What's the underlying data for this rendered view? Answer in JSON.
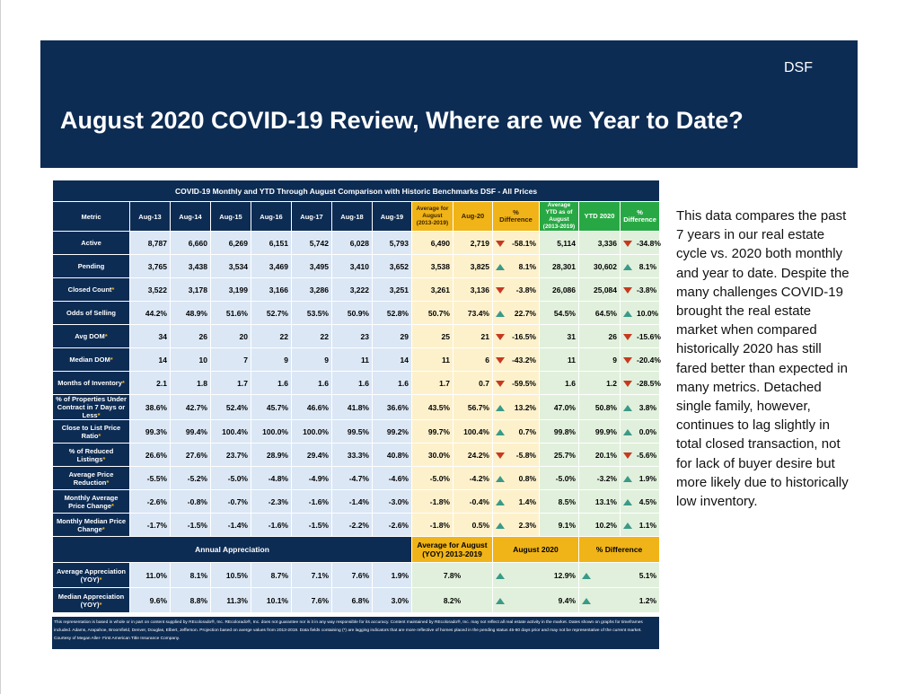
{
  "header": {
    "brand": "DSF",
    "title": "August 2020 COVID-19 Review, Where are we Year to Date?"
  },
  "table": {
    "caption": "COVID-19 Monthly and YTD  Through August Comparison with  Historic Benchmarks  DSF - All Prices",
    "columns": {
      "metric": "Metric",
      "aug13": "Aug-13",
      "aug14": "Aug-14",
      "aug15": "Aug-15",
      "aug16": "Aug-16",
      "aug17": "Aug-17",
      "aug18": "Aug-18",
      "aug19": "Aug-19",
      "avg_aug": "Average for August (2013-2019)",
      "aug20": "Aug-20",
      "pct_diff": "% Difference",
      "avg_ytd": "Average YTD as of August (2013-2019)",
      "ytd2020": "YTD 2020",
      "pct_diff_ytd": "% Difference"
    },
    "rows": [
      {
        "metric": "Active",
        "star": "",
        "h": [
          "8,787",
          "6,660",
          "6,269",
          "6,151",
          "5,742",
          "6,028",
          "5,793"
        ],
        "avg": "6,490",
        "aug20": "2,719",
        "diff": "-58.1%",
        "dir": "down",
        "avg_ytd": "5,114",
        "ytd": "3,336",
        "diff_ytd": "-34.8%",
        "dir_ytd": "down"
      },
      {
        "metric": "Pending",
        "star": "",
        "h": [
          "3,765",
          "3,438",
          "3,534",
          "3,469",
          "3,495",
          "3,410",
          "3,652"
        ],
        "avg": "3,538",
        "aug20": "3,825",
        "diff": "8.1%",
        "dir": "up",
        "avg_ytd": "28,301",
        "ytd": "30,602",
        "diff_ytd": "8.1%",
        "dir_ytd": "up"
      },
      {
        "metric": "Closed Count",
        "star": "*",
        "h": [
          "3,522",
          "3,178",
          "3,199",
          "3,166",
          "3,286",
          "3,222",
          "3,251"
        ],
        "avg": "3,261",
        "aug20": "3,136",
        "diff": "-3.8%",
        "dir": "down",
        "avg_ytd": "26,086",
        "ytd": "25,084",
        "diff_ytd": "-3.8%",
        "dir_ytd": "down"
      },
      {
        "metric": "Odds of Selling",
        "star": "",
        "h": [
          "44.2%",
          "48.9%",
          "51.6%",
          "52.7%",
          "53.5%",
          "50.9%",
          "52.8%"
        ],
        "avg": "50.7%",
        "aug20": "73.4%",
        "diff": "22.7%",
        "dir": "up",
        "avg_ytd": "54.5%",
        "ytd": "64.5%",
        "diff_ytd": "10.0%",
        "dir_ytd": "up"
      },
      {
        "metric": "Avg DOM",
        "star": "*",
        "h": [
          "34",
          "26",
          "20",
          "22",
          "22",
          "23",
          "29"
        ],
        "avg": "25",
        "aug20": "21",
        "diff": "-16.5%",
        "dir": "down",
        "avg_ytd": "31",
        "ytd": "26",
        "diff_ytd": "-15.6%",
        "dir_ytd": "down"
      },
      {
        "metric": "Median DOM",
        "star": "*",
        "h": [
          "14",
          "10",
          "7",
          "9",
          "9",
          "11",
          "14"
        ],
        "avg": "11",
        "aug20": "6",
        "diff": "-43.2%",
        "dir": "down",
        "avg_ytd": "11",
        "ytd": "9",
        "diff_ytd": "-20.4%",
        "dir_ytd": "down"
      },
      {
        "metric": "Months of Inventory",
        "star": "*",
        "h": [
          "2.1",
          "1.8",
          "1.7",
          "1.6",
          "1.6",
          "1.6",
          "1.6"
        ],
        "avg": "1.7",
        "aug20": "0.7",
        "diff": "-59.5%",
        "dir": "down",
        "avg_ytd": "1.6",
        "ytd": "1.2",
        "diff_ytd": "-28.5%",
        "dir_ytd": "down"
      },
      {
        "metric": "% of Properties Under Contract in 7 Days or Less",
        "star": "*",
        "h": [
          "38.6%",
          "42.7%",
          "52.4%",
          "45.7%",
          "46.6%",
          "41.8%",
          "36.6%"
        ],
        "avg": "43.5%",
        "aug20": "56.7%",
        "diff": "13.2%",
        "dir": "up",
        "avg_ytd": "47.0%",
        "ytd": "50.8%",
        "diff_ytd": "3.8%",
        "dir_ytd": "up"
      },
      {
        "metric": "Close to List Price Ratio",
        "star": "*",
        "h": [
          "99.3%",
          "99.4%",
          "100.4%",
          "100.0%",
          "100.0%",
          "99.5%",
          "99.2%"
        ],
        "avg": "99.7%",
        "aug20": "100.4%",
        "diff": "0.7%",
        "dir": "up",
        "avg_ytd": "99.8%",
        "ytd": "99.9%",
        "diff_ytd": "0.0%",
        "dir_ytd": "up"
      },
      {
        "metric": "% of Reduced Listings",
        "star": "*",
        "h": [
          "26.6%",
          "27.6%",
          "23.7%",
          "28.9%",
          "29.4%",
          "33.3%",
          "40.8%"
        ],
        "avg": "30.0%",
        "aug20": "24.2%",
        "diff": "-5.8%",
        "dir": "down",
        "avg_ytd": "25.7%",
        "ytd": "20.1%",
        "diff_ytd": "-5.6%",
        "dir_ytd": "down"
      },
      {
        "metric": "Average Price Reduction",
        "star": "*",
        "h": [
          "-5.5%",
          "-5.2%",
          "-5.0%",
          "-4.8%",
          "-4.9%",
          "-4.7%",
          "-4.6%"
        ],
        "avg": "-5.0%",
        "aug20": "-4.2%",
        "diff": "0.8%",
        "dir": "up",
        "avg_ytd": "-5.0%",
        "ytd": "-3.2%",
        "diff_ytd": "1.9%",
        "dir_ytd": "up"
      },
      {
        "metric": "Monthly Average Price Change",
        "star": "*",
        "h": [
          "-2.6%",
          "-0.8%",
          "-0.7%",
          "-2.3%",
          "-1.6%",
          "-1.4%",
          "-3.0%"
        ],
        "avg": "-1.8%",
        "aug20": "-0.4%",
        "diff": "1.4%",
        "dir": "up",
        "avg_ytd": "8.5%",
        "ytd": "13.1%",
        "diff_ytd": "4.5%",
        "dir_ytd": "up"
      },
      {
        "metric": "Monthly Median Price Change",
        "star": "*",
        "h": [
          "-1.7%",
          "-1.5%",
          "-1.4%",
          "-1.6%",
          "-1.5%",
          "-2.2%",
          "-2.6%"
        ],
        "avg": "-1.8%",
        "aug20": "0.5%",
        "diff": "2.3%",
        "dir": "up",
        "avg_ytd": "9.1%",
        "ytd": "10.2%",
        "diff_ytd": "1.1%",
        "dir_ytd": "up"
      }
    ],
    "annual": {
      "title": "Annual Appreciation",
      "avg_header": "Average for August (YOY)  2013-2019",
      "aug2020_header": "August 2020",
      "diff_header": "% Difference",
      "rows": [
        {
          "metric": "Average Appreciation (YOY)",
          "star": "*",
          "h": [
            "11.0%",
            "8.1%",
            "10.5%",
            "8.7%",
            "7.1%",
            "7.6%",
            "1.9%"
          ],
          "avg": "7.8%",
          "aug2020": "12.9%",
          "diff": "5.1%"
        },
        {
          "metric": "Median Appreciation (YOY)",
          "star": "*",
          "h": [
            "9.6%",
            "8.8%",
            "11.3%",
            "10.1%",
            "7.6%",
            "6.8%",
            "3.0%"
          ],
          "avg": "8.2%",
          "aug2020": "9.4%",
          "diff": "1.2%"
        }
      ]
    },
    "disclaimer": "This representation is based in whole or in part on content supplied by REcolorado®, Inc. REcolorado®, Inc. does not guarantee nor is it in any way responsible for its accuracy. Content maintained by REcolorado®, Inc. may not reflect all real estate activity in the market. Dates shown on graphs for timeframes included.  Adams, Arapahoe, Broomfield, Denver, Douglas, Elbert, Jefferson. Projection based on averge values from 2013-2019. Data fields containing (*) are lagging indicators that are more reflective of homes placed in the pending status 45-60 days prior and may not be representative of the current market. Courtesy of Megan Aller- First American Title Insurance Company."
  },
  "side_text": "This data compares the past 7 years in our real estate cycle vs. 2020 both monthly and year to date. Despite the many challenges COVID-19 brought the real estate market when compared historically 2020 has still fared better than expected in many metrics. Detached single family, however, continues to lag slightly in total closed transaction, not for lack of buyer desire but more likely due to historically low inventory."
}
